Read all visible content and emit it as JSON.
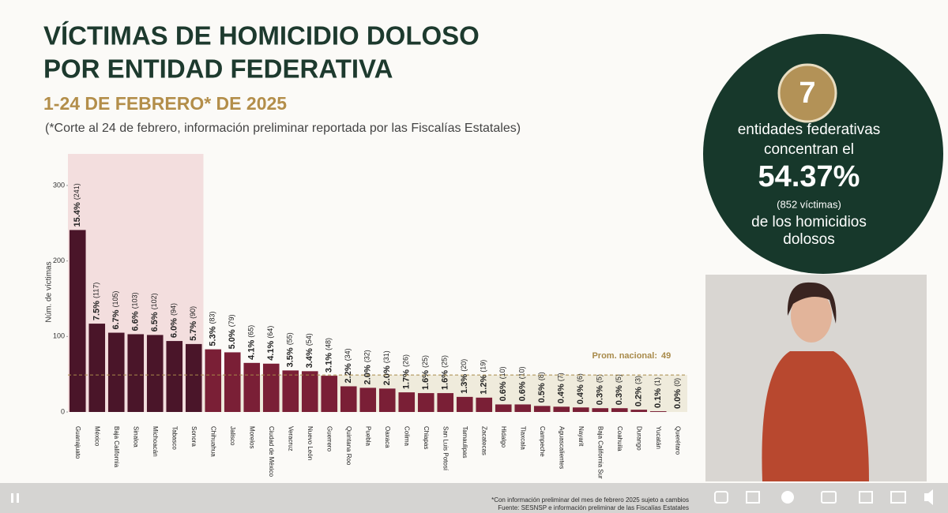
{
  "header": {
    "title_lines": [
      "VÍCTIMAS DE HOMICIDIO DOLOSO",
      "POR ENTIDAD FEDERATIVA"
    ],
    "subtitle": "1-24 DE FEBRERO* DE 2025",
    "note": "(*Corte al 24 de febrero, información preliminar reportada por las Fiscalías Estatales)"
  },
  "callout": {
    "count": 7,
    "lines": [
      "entidades federativas",
      "concentran el"
    ],
    "percent": "54.37%",
    "victims": "(852  víctimas)",
    "tail": [
      "de los homicidios",
      "dolosos"
    ]
  },
  "chart_data": {
    "type": "bar",
    "y_label": "Núm. de víctimas",
    "categories": [
      "Guanajuato",
      "México",
      "Baja California",
      "Sinaloa",
      "Michoacán",
      "Tabasco",
      "Sonora",
      "Chihuahua",
      "Jalisco",
      "Morelos",
      "Ciudad de México",
      "Veracruz",
      "Nuevo León",
      "Guerrero",
      "Quintana Roo",
      "Puebla",
      "Oaxaca",
      "Colima",
      "Chiapas",
      "San Luis Potosí",
      "Tamaulipas",
      "Zacatecas",
      "Hidalgo",
      "Tlaxcala",
      "Campeche",
      "Aguascalientes",
      "Nayarit",
      "Baja California Sur",
      "Coahuila",
      "Durango",
      "Yucatán",
      "Querétaro"
    ],
    "values": [
      241,
      117,
      105,
      103,
      102,
      94,
      90,
      83,
      79,
      65,
      64,
      55,
      54,
      48,
      34,
      32,
      31,
      26,
      25,
      25,
      20,
      19,
      10,
      10,
      8,
      7,
      6,
      5,
      5,
      3,
      1,
      0
    ],
    "value_labels": [
      "(241)",
      "(117)",
      "(105)",
      "(103)",
      "(102)",
      "(94)",
      "(90)",
      "(83)",
      "(79)",
      "(65)",
      "(64)",
      "(55)",
      "(54)",
      "(48)",
      "(34)",
      "(32)",
      "(31)",
      "(26)",
      "(25)",
      "(25)",
      "(20)",
      "(19)",
      "(10)",
      "(10)",
      "(8)",
      "(7)",
      "(6)",
      "(5)",
      "(5)",
      "(3)",
      "(1)",
      "(0)"
    ],
    "share_labels": [
      "15.4%",
      "7.5%",
      "6.7%",
      "6.6%",
      "6.5%",
      "6.0%",
      "5.7%",
      "5.3%",
      "5.0%",
      "4.1%",
      "4.1%",
      "3.5%",
      "3.4%",
      "3.1%",
      "2.2%",
      "2.0%",
      "2.0%",
      "1.7%",
      "1.6%",
      "1.6%",
      "1.3%",
      "1.2%",
      "0.6%",
      "0.6%",
      "0.5%",
      "0.4%",
      "0.4%",
      "0.3%",
      "0.3%",
      "0.2%",
      "0.1%",
      "0.0%"
    ],
    "colors": {
      "top": "#4a1529",
      "rest": "#7a1f36"
    },
    "ylim": [
      0,
      300
    ],
    "yticks": [
      0,
      100,
      200,
      300
    ],
    "average": {
      "label": "Prom. nacional:",
      "value": 49
    }
  },
  "footnote": [
    "*Con información preliminar del mes de febrero 2025 sujeto a cambios",
    "Fuente: SESNSP e información preliminar de las Fiscalías Estatales"
  ]
}
